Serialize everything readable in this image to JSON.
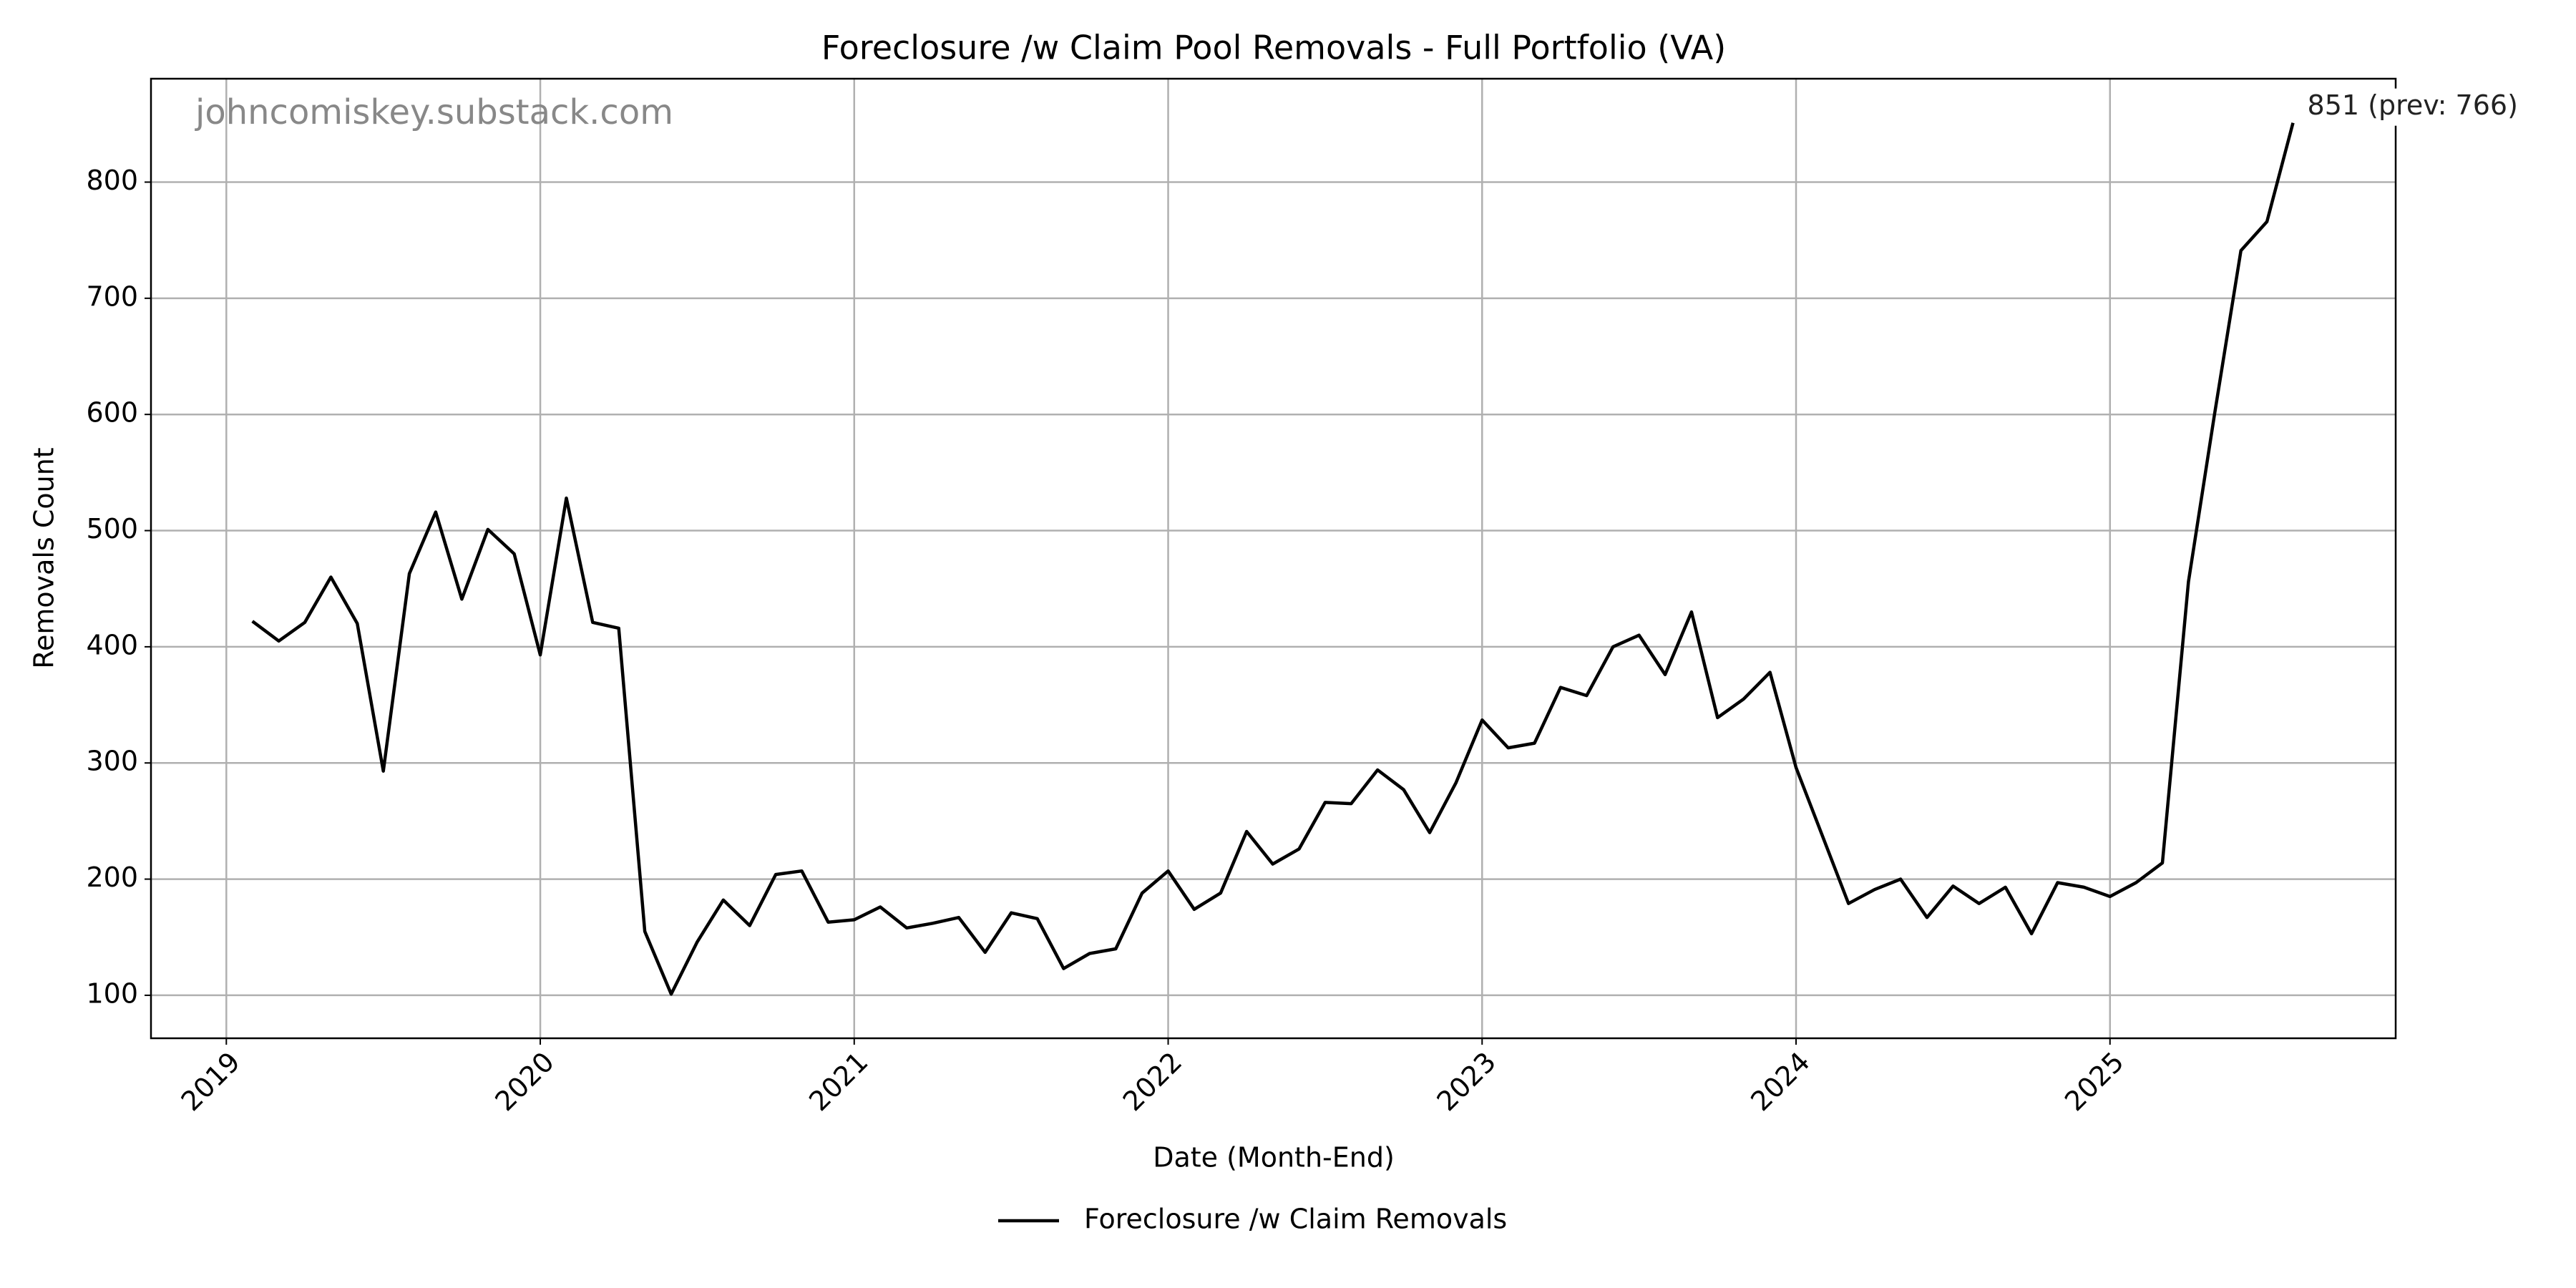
{
  "chart_data": {
    "type": "line",
    "title": "Foreclosure /w Claim Pool Removals - Full Portfolio (VA)",
    "x_label": "Date (Month-End)",
    "y_label": "Removals Count",
    "watermark": "johncomiskey.substack.com",
    "annotation": "851 (prev: 766)",
    "x": [
      2019.083,
      2019.167,
      2019.25,
      2019.333,
      2019.417,
      2019.5,
      2019.583,
      2019.667,
      2019.75,
      2019.833,
      2019.917,
      2020.0,
      2020.083,
      2020.167,
      2020.25,
      2020.333,
      2020.417,
      2020.5,
      2020.583,
      2020.667,
      2020.75,
      2020.833,
      2020.917,
      2021.0,
      2021.083,
      2021.167,
      2021.25,
      2021.333,
      2021.417,
      2021.5,
      2021.583,
      2021.667,
      2021.75,
      2021.833,
      2021.917,
      2022.0,
      2022.083,
      2022.167,
      2022.25,
      2022.333,
      2022.417,
      2022.5,
      2022.583,
      2022.667,
      2022.75,
      2022.833,
      2022.917,
      2023.0,
      2023.083,
      2023.167,
      2023.25,
      2023.333,
      2023.417,
      2023.5,
      2023.583,
      2023.667,
      2023.75,
      2023.833,
      2023.917,
      2024.0,
      2024.083,
      2024.167,
      2024.25,
      2024.333,
      2024.417,
      2024.5,
      2024.583,
      2024.667,
      2024.75,
      2024.833,
      2024.917,
      2025.0,
      2025.083,
      2025.167,
      2025.25,
      2025.333,
      2025.417,
      2025.5,
      2025.583
    ],
    "series": [
      {
        "name": "Foreclosure /w Claim Removals",
        "color": "#000000",
        "values": [
          422,
          405,
          421,
          460,
          420,
          293,
          463,
          516,
          441,
          501,
          480,
          393,
          528,
          421,
          416,
          155,
          101,
          146,
          182,
          160,
          204,
          207,
          163,
          165,
          176,
          158,
          162,
          167,
          137,
          171,
          166,
          123,
          136,
          140,
          188,
          207,
          174,
          188,
          241,
          213,
          226,
          266,
          265,
          294,
          277,
          240,
          283,
          337,
          313,
          317,
          365,
          358,
          400,
          410,
          376,
          430,
          339,
          355,
          378,
          296,
          238,
          179,
          191,
          200,
          167,
          194,
          179,
          193,
          153,
          197,
          193,
          185,
          197,
          214,
          456,
          600,
          741,
          766,
          851
        ]
      }
    ],
    "xlim": [
      2018.76,
      2025.91
    ],
    "xticks": [
      2019,
      2020,
      2021,
      2022,
      2023,
      2024,
      2025
    ],
    "ylim": [
      63,
      889
    ],
    "yticks": [
      100,
      200,
      300,
      400,
      500,
      600,
      700,
      800
    ],
    "grid": true,
    "legend": "lower center"
  }
}
